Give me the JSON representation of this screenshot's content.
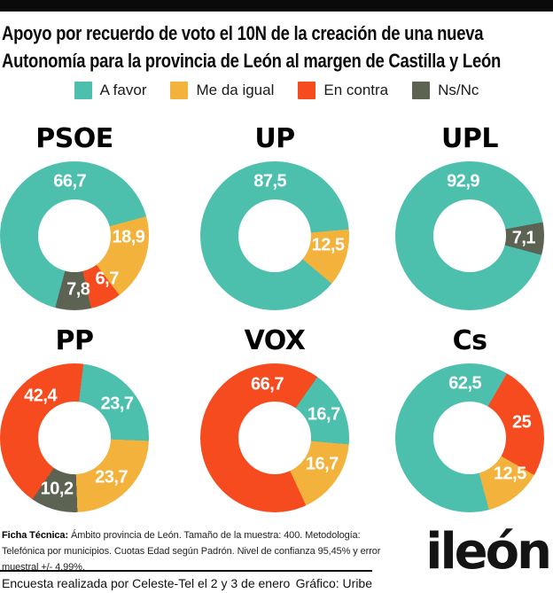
{
  "header": {
    "title_line1": "Apoyo por recuerdo de voto el 10N de la creación de una nueva",
    "title_line2": "Autonomía para la provincia de León al margen de Castilla y León"
  },
  "legend": {
    "items": [
      "A favor",
      "Me da igual",
      "En contra",
      "Ns/Nc"
    ]
  },
  "chart_data": {
    "type": "pie",
    "variant": "donut-small-multiples",
    "title": "Apoyo por recuerdo de voto el 10N de la creación de una nueva Autonomía para la provincia de León al margen de Castilla y León",
    "legend": [
      "A favor",
      "Me da igual",
      "En contra",
      "Ns/Nc"
    ],
    "legend_position": "top",
    "colors": {
      "A favor": "#4DBFAD",
      "Me da igual": "#F2B23C",
      "En contra": "#F64B1F",
      "Ns/Nc": "#5C6353"
    },
    "charts": [
      {
        "title": "PSOE",
        "start_angle": 195,
        "segments": [
          {
            "category": "A favor",
            "value": 66.7,
            "display": "66,7",
            "label_angle": 355
          },
          {
            "category": "Me da igual",
            "value": 18.9,
            "display": "18,9",
            "label_angle": 92
          },
          {
            "category": "En contra",
            "value": 6.7,
            "display": "6,7",
            "label_angle": 143
          },
          {
            "category": "Ns/Nc",
            "value": 7.8,
            "display": "7,8",
            "label_angle": 176
          }
        ]
      },
      {
        "title": "UP",
        "start_angle": 130,
        "segments": [
          {
            "category": "A favor",
            "value": 87.5,
            "display": "87,5",
            "label_angle": 355
          },
          {
            "category": "Me da igual",
            "value": 12.5,
            "display": "12,5",
            "label_angle": 100
          }
        ]
      },
      {
        "title": "UPL",
        "start_angle": 105,
        "segments": [
          {
            "category": "A favor",
            "value": 92.9,
            "display": "92,9",
            "label_angle": 353
          },
          {
            "category": "Ns/Nc",
            "value": 7.1,
            "display": "7,1",
            "label_angle": 93
          }
        ]
      },
      {
        "title": "PP",
        "start_angle": 7,
        "segments": [
          {
            "category": "A favor",
            "value": 23.7,
            "display": "23,7",
            "label_angle": 52
          },
          {
            "category": "Me da igual",
            "value": 23.7,
            "display": "23,7",
            "label_angle": 137
          },
          {
            "category": "Ns/Nc",
            "value": 10.2,
            "display": "10,2",
            "label_angle": 199
          },
          {
            "category": "En contra",
            "value": 42.4,
            "display": "42,4",
            "label_angle": 321
          }
        ]
      },
      {
        "title": "VOX",
        "start_angle": 35,
        "segments": [
          {
            "category": "A favor",
            "value": 16.7,
            "display": "16,7",
            "label_angle": 65
          },
          {
            "category": "Me da igual",
            "value": 16.7,
            "display": "16,7",
            "label_angle": 119
          },
          {
            "category": "En contra",
            "value": 66.7,
            "display": "66,7",
            "label_angle": 352
          }
        ]
      },
      {
        "title": "Cs",
        "start_angle": 30,
        "segments": [
          {
            "category": "En contra",
            "value": 25,
            "display": "25",
            "label_angle": 74
          },
          {
            "category": "Me da igual",
            "value": 12.5,
            "display": "12,5",
            "label_angle": 132
          },
          {
            "category": "A favor",
            "value": 62.5,
            "display": "62,5",
            "label_angle": 355
          }
        ]
      }
    ]
  },
  "footer": {
    "ficha_label": "Ficha Técnica:",
    "ficha_text": " Ámbito provincia de León. Tamaño de la muestra: 400. Metodología: Telefónica  por municipios. Cuotas Edad según Padrón. Nivel de confianza 95,45% y error muestral +/- 4,99%.",
    "survey_credit": "Encuesta realizada por Celeste-Tel el 2 y 3 de enero",
    "graphic_credit": "Gráfico: Uribe",
    "logo_text": "ileón"
  }
}
